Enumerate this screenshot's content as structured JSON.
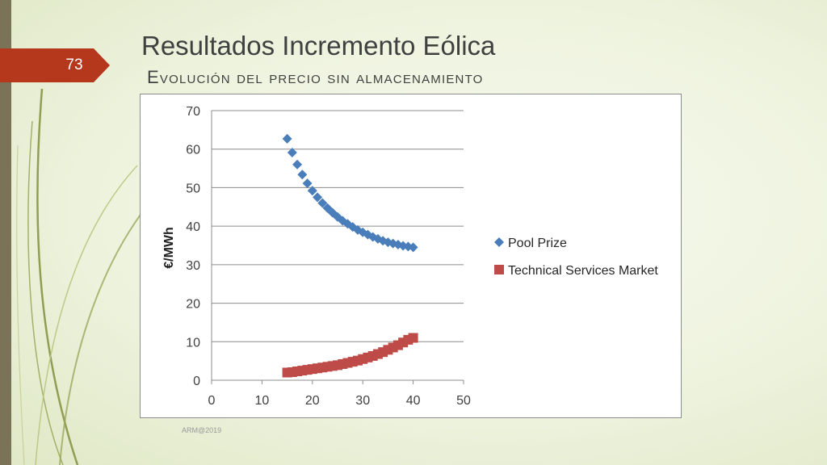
{
  "slide": {
    "number": "73",
    "title": "Resultados Incremento Eólica",
    "subtitle": "Evolución del precio sin almacenamiento",
    "footer": "ARM@2019"
  },
  "colors": {
    "accent_tab": "#b5381d",
    "series_pool": "#4a7ebb",
    "series_market": "#be4b48"
  },
  "chart_data": {
    "type": "scatter",
    "title": "",
    "xlabel": "",
    "ylabel": "€/MWh",
    "xlim": [
      0,
      50
    ],
    "ylim": [
      0,
      70
    ],
    "xticks": [
      0,
      10,
      20,
      30,
      40,
      50
    ],
    "yticks": [
      0,
      10,
      20,
      30,
      40,
      50,
      60,
      70
    ],
    "grid": "horizontal",
    "legend": "right",
    "series": [
      {
        "name": "Pool Prize",
        "marker": "diamond",
        "color": "#4a7ebb",
        "x": [
          15,
          16,
          17,
          18,
          19,
          20,
          21,
          22,
          23,
          24,
          25,
          26,
          27,
          28,
          29,
          30,
          31,
          32,
          33,
          34,
          35,
          36,
          37,
          38,
          39,
          40
        ],
        "y": [
          62.7,
          59.1,
          56.0,
          53.4,
          51.1,
          49.2,
          47.5,
          46.0,
          44.7,
          43.5,
          42.4,
          41.4,
          40.6,
          39.8,
          39.0,
          38.4,
          37.8,
          37.2,
          36.7,
          36.2,
          35.8,
          35.5,
          35.2,
          34.9,
          34.7,
          34.5
        ]
      },
      {
        "name": "Technical Services Market",
        "marker": "square",
        "color": "#be4b48",
        "x": [
          15,
          16,
          17,
          18,
          19,
          20,
          21,
          22,
          23,
          24,
          25,
          26,
          27,
          28,
          29,
          30,
          31,
          32,
          33,
          34,
          35,
          36,
          37,
          38,
          39,
          40
        ],
        "y": [
          2.0,
          2.1,
          2.3,
          2.5,
          2.7,
          2.9,
          3.1,
          3.3,
          3.5,
          3.7,
          3.9,
          4.2,
          4.5,
          4.8,
          5.1,
          5.5,
          5.9,
          6.3,
          6.8,
          7.3,
          7.9,
          8.5,
          9.1,
          9.8,
          10.5,
          11.0
        ]
      }
    ]
  }
}
